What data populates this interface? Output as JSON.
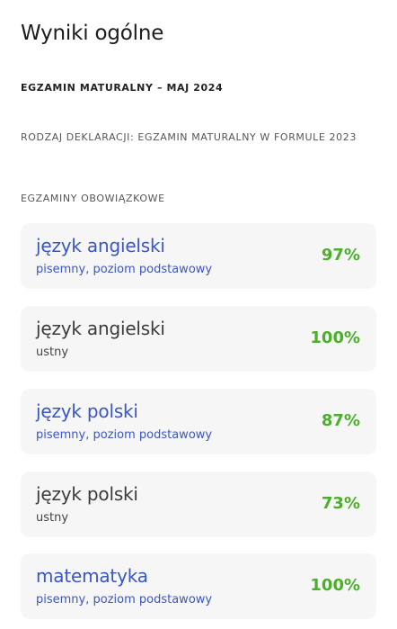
{
  "page": {
    "title": "Wyniki ogólne",
    "exam_session": "EGZAMIN MATURALNY – MAJ 2024",
    "declaration": "RODZAJ DEKLARACJI: EGZAMIN MATURALNY W FORMULE 2023",
    "section_heading": "EGZAMINY OBOWIĄZKOWE"
  },
  "colors": {
    "link": "#3a56c5",
    "score": "#4caf2a",
    "card_background": "#f6f6f6"
  },
  "exams": [
    {
      "subject": "język angielski",
      "detail": "pisemny, poziom podstawowy",
      "score": "97%",
      "style": "link"
    },
    {
      "subject": "język angielski",
      "detail": "ustny",
      "score": "100%",
      "style": "plain"
    },
    {
      "subject": "język polski",
      "detail": "pisemny, poziom podstawowy",
      "score": "87%",
      "style": "link"
    },
    {
      "subject": "język polski",
      "detail": "ustny",
      "score": "73%",
      "style": "plain"
    },
    {
      "subject": "matematyka",
      "detail": "pisemny, poziom podstawowy",
      "score": "100%",
      "style": "link"
    }
  ]
}
